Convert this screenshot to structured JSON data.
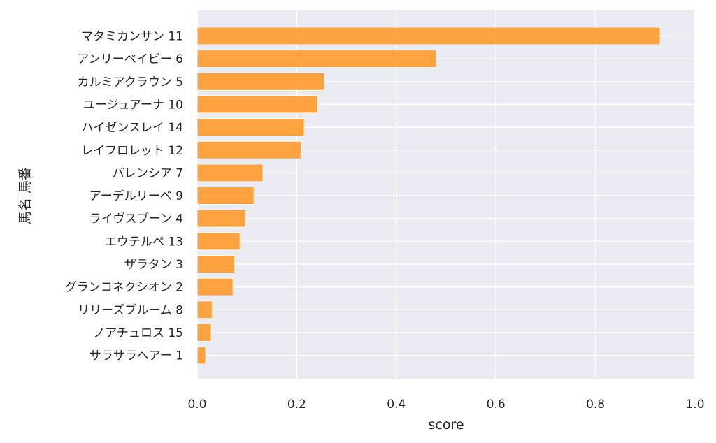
{
  "chart_data": {
    "type": "bar",
    "orientation": "horizontal",
    "xlabel": "score",
    "ylabel": "馬名 馬番",
    "xlim": [
      0,
      1.0
    ],
    "xticks": [
      "0.0",
      "0.2",
      "0.4",
      "0.6",
      "0.8",
      "1.0"
    ],
    "grid": true,
    "bar_color": "#ff9a2e",
    "background_color": "#eaeaf2",
    "categories": [
      "マタミカンサン 11",
      "アンリーベイビー 6",
      "カルミアクラウン 5",
      "ユージュアーナ 10",
      "ハイゼンスレイ 14",
      "レイフロレット 12",
      "バレンシア 7",
      "アーデルリーベ 9",
      "ライヴスプーン 4",
      "エウテルペ 13",
      "ザラタン 3",
      "グランコネクシオン 2",
      "リリーズブルーム 8",
      "ノアチュロス 15",
      "サラサラヘアー 1"
    ],
    "values": [
      0.93,
      0.48,
      0.255,
      0.242,
      0.215,
      0.209,
      0.132,
      0.114,
      0.097,
      0.086,
      0.075,
      0.072,
      0.03,
      0.028,
      0.017
    ]
  }
}
